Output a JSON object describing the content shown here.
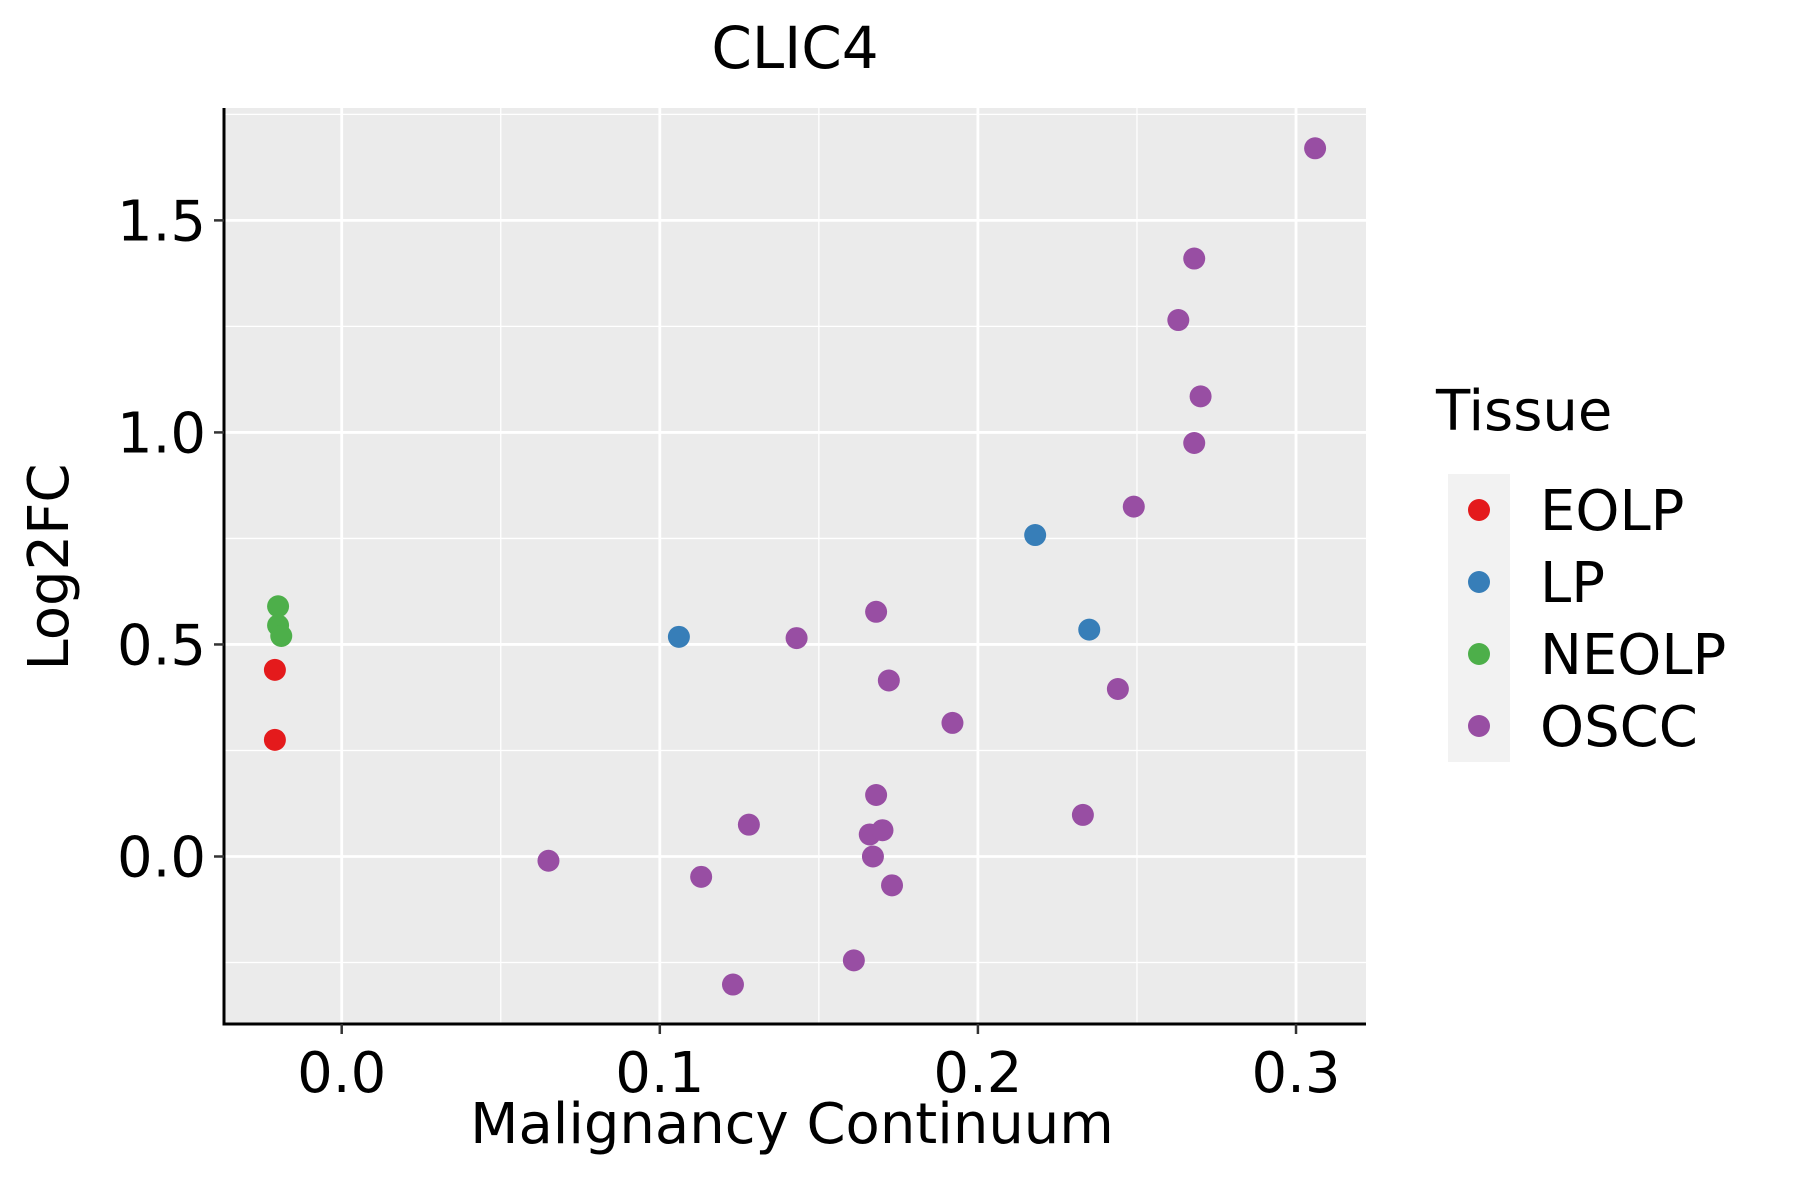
{
  "chart_data": {
    "type": "scatter",
    "title": "CLIC4",
    "xlabel": "Malignancy Continuum",
    "ylabel": "Log2FC",
    "xlim": [
      -0.037,
      0.322
    ],
    "ylim": [
      -0.395,
      1.765
    ],
    "x_ticks": [
      0.0,
      0.1,
      0.2,
      0.3
    ],
    "x_tick_labels": [
      "0.0",
      "0.1",
      "0.2",
      "0.3"
    ],
    "y_ticks": [
      0.0,
      0.5,
      1.0,
      1.5
    ],
    "y_tick_labels": [
      "0.0",
      "0.5",
      "1.0",
      "1.5"
    ],
    "grid": true,
    "legend": {
      "title": "Tissue",
      "position": "right",
      "entries": [
        {
          "name": "EOLP",
          "color": "#E41A1C"
        },
        {
          "name": "LP",
          "color": "#377EB8"
        },
        {
          "name": "NEOLP",
          "color": "#4DAF4A"
        },
        {
          "name": "OSCC",
          "color": "#984EA3"
        }
      ]
    },
    "series": [
      {
        "name": "EOLP",
        "color": "#E41A1C",
        "x": [
          -0.021,
          -0.021
        ],
        "y": [
          0.44,
          0.275
        ]
      },
      {
        "name": "LP",
        "color": "#377EB8",
        "x": [
          0.106,
          0.218,
          0.235
        ],
        "y": [
          0.518,
          0.758,
          0.535
        ]
      },
      {
        "name": "NEOLP",
        "color": "#4DAF4A",
        "x": [
          -0.02,
          -0.02,
          -0.019
        ],
        "y": [
          0.59,
          0.545,
          0.52
        ]
      },
      {
        "name": "OSCC",
        "color": "#984EA3",
        "x": [
          0.306,
          0.268,
          0.263,
          0.27,
          0.268,
          0.249,
          0.168,
          0.143,
          0.172,
          0.244,
          0.192,
          0.168,
          0.233,
          0.128,
          0.166,
          0.17,
          0.167,
          0.065,
          0.113,
          0.173,
          0.161,
          0.123
        ],
        "y": [
          1.67,
          1.41,
          1.265,
          1.085,
          0.975,
          0.825,
          0.577,
          0.515,
          0.415,
          0.395,
          0.315,
          0.145,
          0.098,
          0.075,
          0.052,
          0.062,
          0.0,
          -0.01,
          -0.048,
          -0.068,
          -0.245,
          -0.302
        ]
      }
    ]
  }
}
